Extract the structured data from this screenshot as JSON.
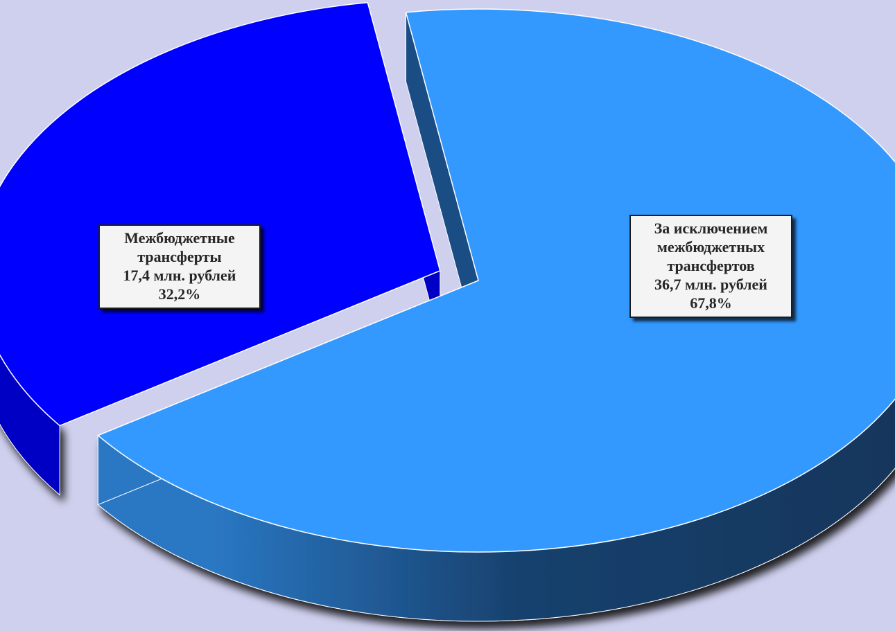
{
  "chart_data": {
    "type": "pie",
    "variant": "3d-exploded",
    "title": "",
    "slices": [
      {
        "label_lines": [
          "Межбюджетные",
          "трансферты"
        ],
        "amount_text": "17,4 млн. рублей",
        "percent_text": "32,2%",
        "value": 17.4,
        "percent": 32.2,
        "top_color": "#0000ff",
        "side_color": "#0000c4",
        "exploded": true
      },
      {
        "label_lines": [
          "За исключением",
          "межбюджетных",
          "трансфертов"
        ],
        "amount_text": "36,7 млн. рублей",
        "percent_text": "67,8%",
        "value": 36.7,
        "percent": 67.8,
        "top_color": "#3399ff",
        "side_color": "#1b4d85",
        "exploded": false
      }
    ]
  },
  "colors": {
    "background": "#cfd0ee",
    "slice_edge": "#ffffff",
    "label_background": "#f4f4f4",
    "label_border": "#1c1c1c"
  }
}
